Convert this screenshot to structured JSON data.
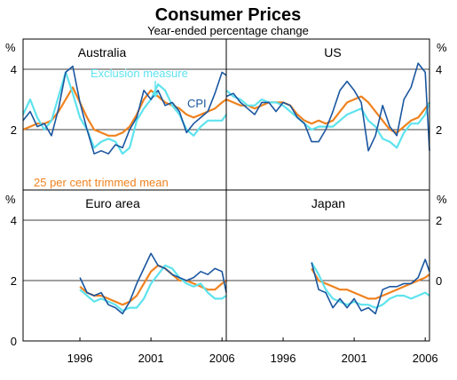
{
  "figure": {
    "title": "Consumer Prices",
    "subtitle": "Year-ended percentage change",
    "unit_left": "%",
    "unit_right": "%"
  },
  "colors": {
    "cpi": "#1a56a0",
    "exclusion": "#5ee3ee",
    "trimmed": "#f0821e",
    "grid": "#000000",
    "frame": "#000000"
  },
  "chart_data": [
    {
      "type": "line",
      "panel": "Australia",
      "title": "Australia",
      "ylim": [
        0,
        5
      ],
      "yticks": [
        2,
        4
      ],
      "xlim": [
        1992.0,
        2006.3
      ],
      "annotations": [
        {
          "text": "Exclusion measure",
          "series": "Exclusion measure"
        },
        {
          "text": "CPI",
          "series": "CPI"
        },
        {
          "text": "25 per cent trimmed mean",
          "series": "25 per cent trimmed mean"
        }
      ],
      "series": [
        {
          "name": "CPI",
          "x": [
            1992.0,
            1992.5,
            1993.0,
            1993.5,
            1994.0,
            1994.5,
            1995.0,
            1995.5,
            1996.0,
            1996.5,
            1997.0,
            1997.5,
            1998.0,
            1998.5,
            1999.0,
            1999.5,
            2000.0,
            2000.5,
            2001.0,
            2001.5,
            2002.0,
            2002.5,
            2003.0,
            2003.5,
            2004.0,
            2004.5,
            2005.0,
            2005.5,
            2006.0,
            2006.3
          ],
          "y": [
            2.3,
            2.6,
            2.1,
            2.2,
            1.8,
            2.7,
            3.9,
            4.1,
            2.9,
            2.0,
            1.2,
            1.3,
            1.2,
            1.5,
            1.4,
            2.0,
            2.4,
            3.3,
            3.0,
            3.3,
            2.8,
            2.9,
            2.6,
            1.9,
            2.2,
            2.4,
            2.6,
            3.2,
            3.9,
            3.8
          ]
        },
        {
          "name": "Exclusion measure",
          "x": [
            1992.0,
            1992.5,
            1993.0,
            1993.5,
            1994.0,
            1994.5,
            1995.0,
            1995.5,
            1996.0,
            1996.5,
            1997.0,
            1997.5,
            1998.0,
            1998.5,
            1999.0,
            1999.5,
            2000.0,
            2000.5,
            2001.0,
            2001.5,
            2002.0,
            2002.5,
            2003.0,
            2003.5,
            2004.0,
            2004.5,
            2005.0,
            2005.5,
            2006.0,
            2006.3
          ],
          "y": [
            2.5,
            3.0,
            2.4,
            2.0,
            2.3,
            3.1,
            3.9,
            3.2,
            2.4,
            2.0,
            1.4,
            1.6,
            1.7,
            1.6,
            1.2,
            1.4,
            2.3,
            2.7,
            3.0,
            3.5,
            3.3,
            2.8,
            2.5,
            2.0,
            1.8,
            2.1,
            2.3,
            2.3,
            2.3,
            2.5
          ]
        },
        {
          "name": "25 per cent trimmed mean",
          "x": [
            1992.0,
            1992.5,
            1993.0,
            1993.5,
            1994.0,
            1994.5,
            1995.0,
            1995.5,
            1996.0,
            1996.5,
            1997.0,
            1997.5,
            1998.0,
            1998.5,
            1999.0,
            1999.5,
            2000.0,
            2000.5,
            2001.0,
            2001.5,
            2002.0,
            2002.5,
            2003.0,
            2003.5,
            2004.0,
            2004.5,
            2005.0,
            2005.5,
            2006.0,
            2006.3
          ],
          "y": [
            2.0,
            2.1,
            2.2,
            2.2,
            2.3,
            2.6,
            3.0,
            3.4,
            2.9,
            2.4,
            2.0,
            1.9,
            1.8,
            1.8,
            1.9,
            2.1,
            2.5,
            3.0,
            3.3,
            3.1,
            2.9,
            2.8,
            2.7,
            2.5,
            2.4,
            2.5,
            2.6,
            2.7,
            2.9,
            3.0
          ]
        }
      ]
    },
    {
      "type": "line",
      "panel": "US",
      "title": "US",
      "ylim": [
        0,
        5
      ],
      "yticks": [
        2,
        4
      ],
      "xlim": [
        1992.0,
        2006.3
      ],
      "series": [
        {
          "name": "CPI",
          "x": [
            1992.0,
            1992.5,
            1993.0,
            1993.5,
            1994.0,
            1994.5,
            1995.0,
            1995.5,
            1996.0,
            1996.5,
            1997.0,
            1997.5,
            1998.0,
            1998.5,
            1999.0,
            1999.5,
            2000.0,
            2000.5,
            2001.0,
            2001.5,
            2002.0,
            2002.5,
            2003.0,
            2003.5,
            2004.0,
            2004.5,
            2005.0,
            2005.5,
            2006.0,
            2006.3
          ],
          "y": [
            3.1,
            3.2,
            2.9,
            2.7,
            2.5,
            2.9,
            2.9,
            2.6,
            2.9,
            2.8,
            2.4,
            2.2,
            1.6,
            1.6,
            2.0,
            2.6,
            3.3,
            3.6,
            3.3,
            2.9,
            1.3,
            1.8,
            2.8,
            2.1,
            1.8,
            3.0,
            3.4,
            4.2,
            3.9,
            1.3
          ]
        },
        {
          "name": "Exclusion measure",
          "x": [
            1992.0,
            1992.5,
            1993.0,
            1993.5,
            1994.0,
            1994.5,
            1995.0,
            1995.5,
            1996.0,
            1996.5,
            1997.0,
            1997.5,
            1998.0,
            1998.5,
            1999.0,
            1999.5,
            2000.0,
            2000.5,
            2001.0,
            2001.5,
            2002.0,
            2002.5,
            2003.0,
            2003.5,
            2004.0,
            2004.5,
            2005.0,
            2005.5,
            2006.0,
            2006.3
          ],
          "y": [
            3.3,
            3.1,
            3.0,
            2.8,
            2.8,
            3.0,
            2.9,
            2.9,
            2.8,
            2.6,
            2.4,
            2.2,
            2.0,
            2.1,
            2.1,
            2.1,
            2.3,
            2.5,
            2.6,
            2.7,
            2.3,
            2.1,
            1.7,
            1.6,
            1.4,
            1.9,
            2.2,
            2.2,
            2.5,
            2.9
          ]
        },
        {
          "name": "25 per cent trimmed mean",
          "x": [
            1992.0,
            1992.5,
            1993.0,
            1993.5,
            1994.0,
            1994.5,
            1995.0,
            1995.5,
            1996.0,
            1996.5,
            1997.0,
            1997.5,
            1998.0,
            1998.5,
            1999.0,
            1999.5,
            2000.0,
            2000.5,
            2001.0,
            2001.5,
            2002.0,
            2002.5,
            2003.0,
            2003.5,
            2004.0,
            2004.5,
            2005.0,
            2005.5,
            2006.0,
            2006.3
          ],
          "y": [
            3.0,
            2.9,
            2.8,
            2.8,
            2.7,
            2.8,
            2.9,
            2.9,
            2.9,
            2.8,
            2.5,
            2.3,
            2.2,
            2.3,
            2.2,
            2.3,
            2.6,
            2.9,
            3.0,
            3.1,
            2.9,
            2.6,
            2.3,
            2.0,
            1.9,
            2.1,
            2.3,
            2.4,
            2.7,
            2.9
          ]
        }
      ]
    },
    {
      "type": "line",
      "panel": "Euro area",
      "title": "Euro area",
      "ylim": [
        0,
        5
      ],
      "yticks": [
        0,
        2,
        4
      ],
      "xlim": [
        1992.0,
        2006.3
      ],
      "xticks": [
        1996,
        2001,
        2006
      ],
      "series": [
        {
          "name": "CPI",
          "x": [
            1996.0,
            1996.5,
            1997.0,
            1997.5,
            1998.0,
            1998.5,
            1999.0,
            1999.5,
            2000.0,
            2000.5,
            2001.0,
            2001.5,
            2002.0,
            2002.5,
            2003.0,
            2003.5,
            2004.0,
            2004.5,
            2005.0,
            2005.5,
            2006.0,
            2006.3
          ],
          "y": [
            2.1,
            1.6,
            1.5,
            1.6,
            1.2,
            1.1,
            0.9,
            1.3,
            1.9,
            2.4,
            2.9,
            2.5,
            2.4,
            2.2,
            2.1,
            2.0,
            2.1,
            2.3,
            2.2,
            2.4,
            2.3,
            1.6
          ]
        },
        {
          "name": "Exclusion measure",
          "x": [
            1996.0,
            1996.5,
            1997.0,
            1997.5,
            1998.0,
            1998.5,
            1999.0,
            1999.5,
            2000.0,
            2000.5,
            2001.0,
            2001.5,
            2002.0,
            2002.5,
            2003.0,
            2003.5,
            2004.0,
            2004.5,
            2005.0,
            2005.5,
            2006.0,
            2006.3
          ],
          "y": [
            1.7,
            1.5,
            1.3,
            1.4,
            1.3,
            1.2,
            1.0,
            1.1,
            1.1,
            1.4,
            1.9,
            2.2,
            2.5,
            2.4,
            2.1,
            1.9,
            1.8,
            1.9,
            1.6,
            1.4,
            1.4,
            1.5
          ]
        },
        {
          "name": "25 per cent trimmed mean",
          "x": [
            1996.0,
            1996.5,
            1997.0,
            1997.5,
            1998.0,
            1998.5,
            1999.0,
            1999.5,
            2000.0,
            2000.5,
            2001.0,
            2001.5,
            2002.0,
            2002.5,
            2003.0,
            2003.5,
            2004.0,
            2004.5,
            2005.0,
            2005.5,
            2006.0,
            2006.3
          ],
          "y": [
            1.8,
            1.6,
            1.5,
            1.5,
            1.4,
            1.3,
            1.2,
            1.3,
            1.5,
            1.9,
            2.3,
            2.5,
            2.4,
            2.2,
            2.0,
            2.0,
            1.9,
            1.8,
            1.7,
            1.7,
            1.9,
            2.0
          ]
        }
      ]
    },
    {
      "type": "line",
      "panel": "Japan",
      "title": "Japan",
      "ylim": [
        -2,
        3
      ],
      "yticks": [
        0,
        2
      ],
      "xlim": [
        1992.0,
        2006.3
      ],
      "xticks": [
        1996,
        2001,
        2006
      ],
      "series": [
        {
          "name": "CPI",
          "x": [
            1998.0,
            1998.5,
            1999.0,
            1999.5,
            2000.0,
            2000.5,
            2001.0,
            2001.5,
            2002.0,
            2002.5,
            2003.0,
            2003.5,
            2004.0,
            2004.5,
            2005.0,
            2005.5,
            2006.0,
            2006.3
          ],
          "y": [
            0.6,
            -0.3,
            -0.4,
            -0.9,
            -0.6,
            -0.9,
            -0.6,
            -1.0,
            -0.9,
            -1.1,
            -0.3,
            -0.2,
            -0.2,
            -0.1,
            -0.1,
            0.1,
            0.7,
            0.3
          ]
        },
        {
          "name": "Exclusion measure",
          "x": [
            1998.0,
            1998.5,
            1999.0,
            1999.5,
            2000.0,
            2000.5,
            2001.0,
            2001.5,
            2002.0,
            2002.5,
            2003.0,
            2003.5,
            2004.0,
            2004.5,
            2005.0,
            2005.5,
            2006.0,
            2006.3
          ],
          "y": [
            0.6,
            0.2,
            -0.3,
            -0.6,
            -0.7,
            -0.8,
            -0.7,
            -0.8,
            -0.8,
            -0.9,
            -0.8,
            -0.6,
            -0.5,
            -0.5,
            -0.6,
            -0.5,
            -0.4,
            -0.5
          ]
        },
        {
          "name": "25 per cent trimmed mean",
          "x": [
            1998.0,
            1998.5,
            1999.0,
            1999.5,
            2000.0,
            2000.5,
            2001.0,
            2001.5,
            2002.0,
            2002.5,
            2003.0,
            2003.5,
            2004.0,
            2004.5,
            2005.0,
            2005.5,
            2006.0,
            2006.3
          ],
          "y": [
            0.4,
            0.0,
            -0.1,
            -0.2,
            -0.3,
            -0.3,
            -0.4,
            -0.5,
            -0.6,
            -0.6,
            -0.5,
            -0.4,
            -0.3,
            -0.2,
            -0.1,
            0.0,
            0.1,
            0.2
          ]
        }
      ]
    }
  ]
}
